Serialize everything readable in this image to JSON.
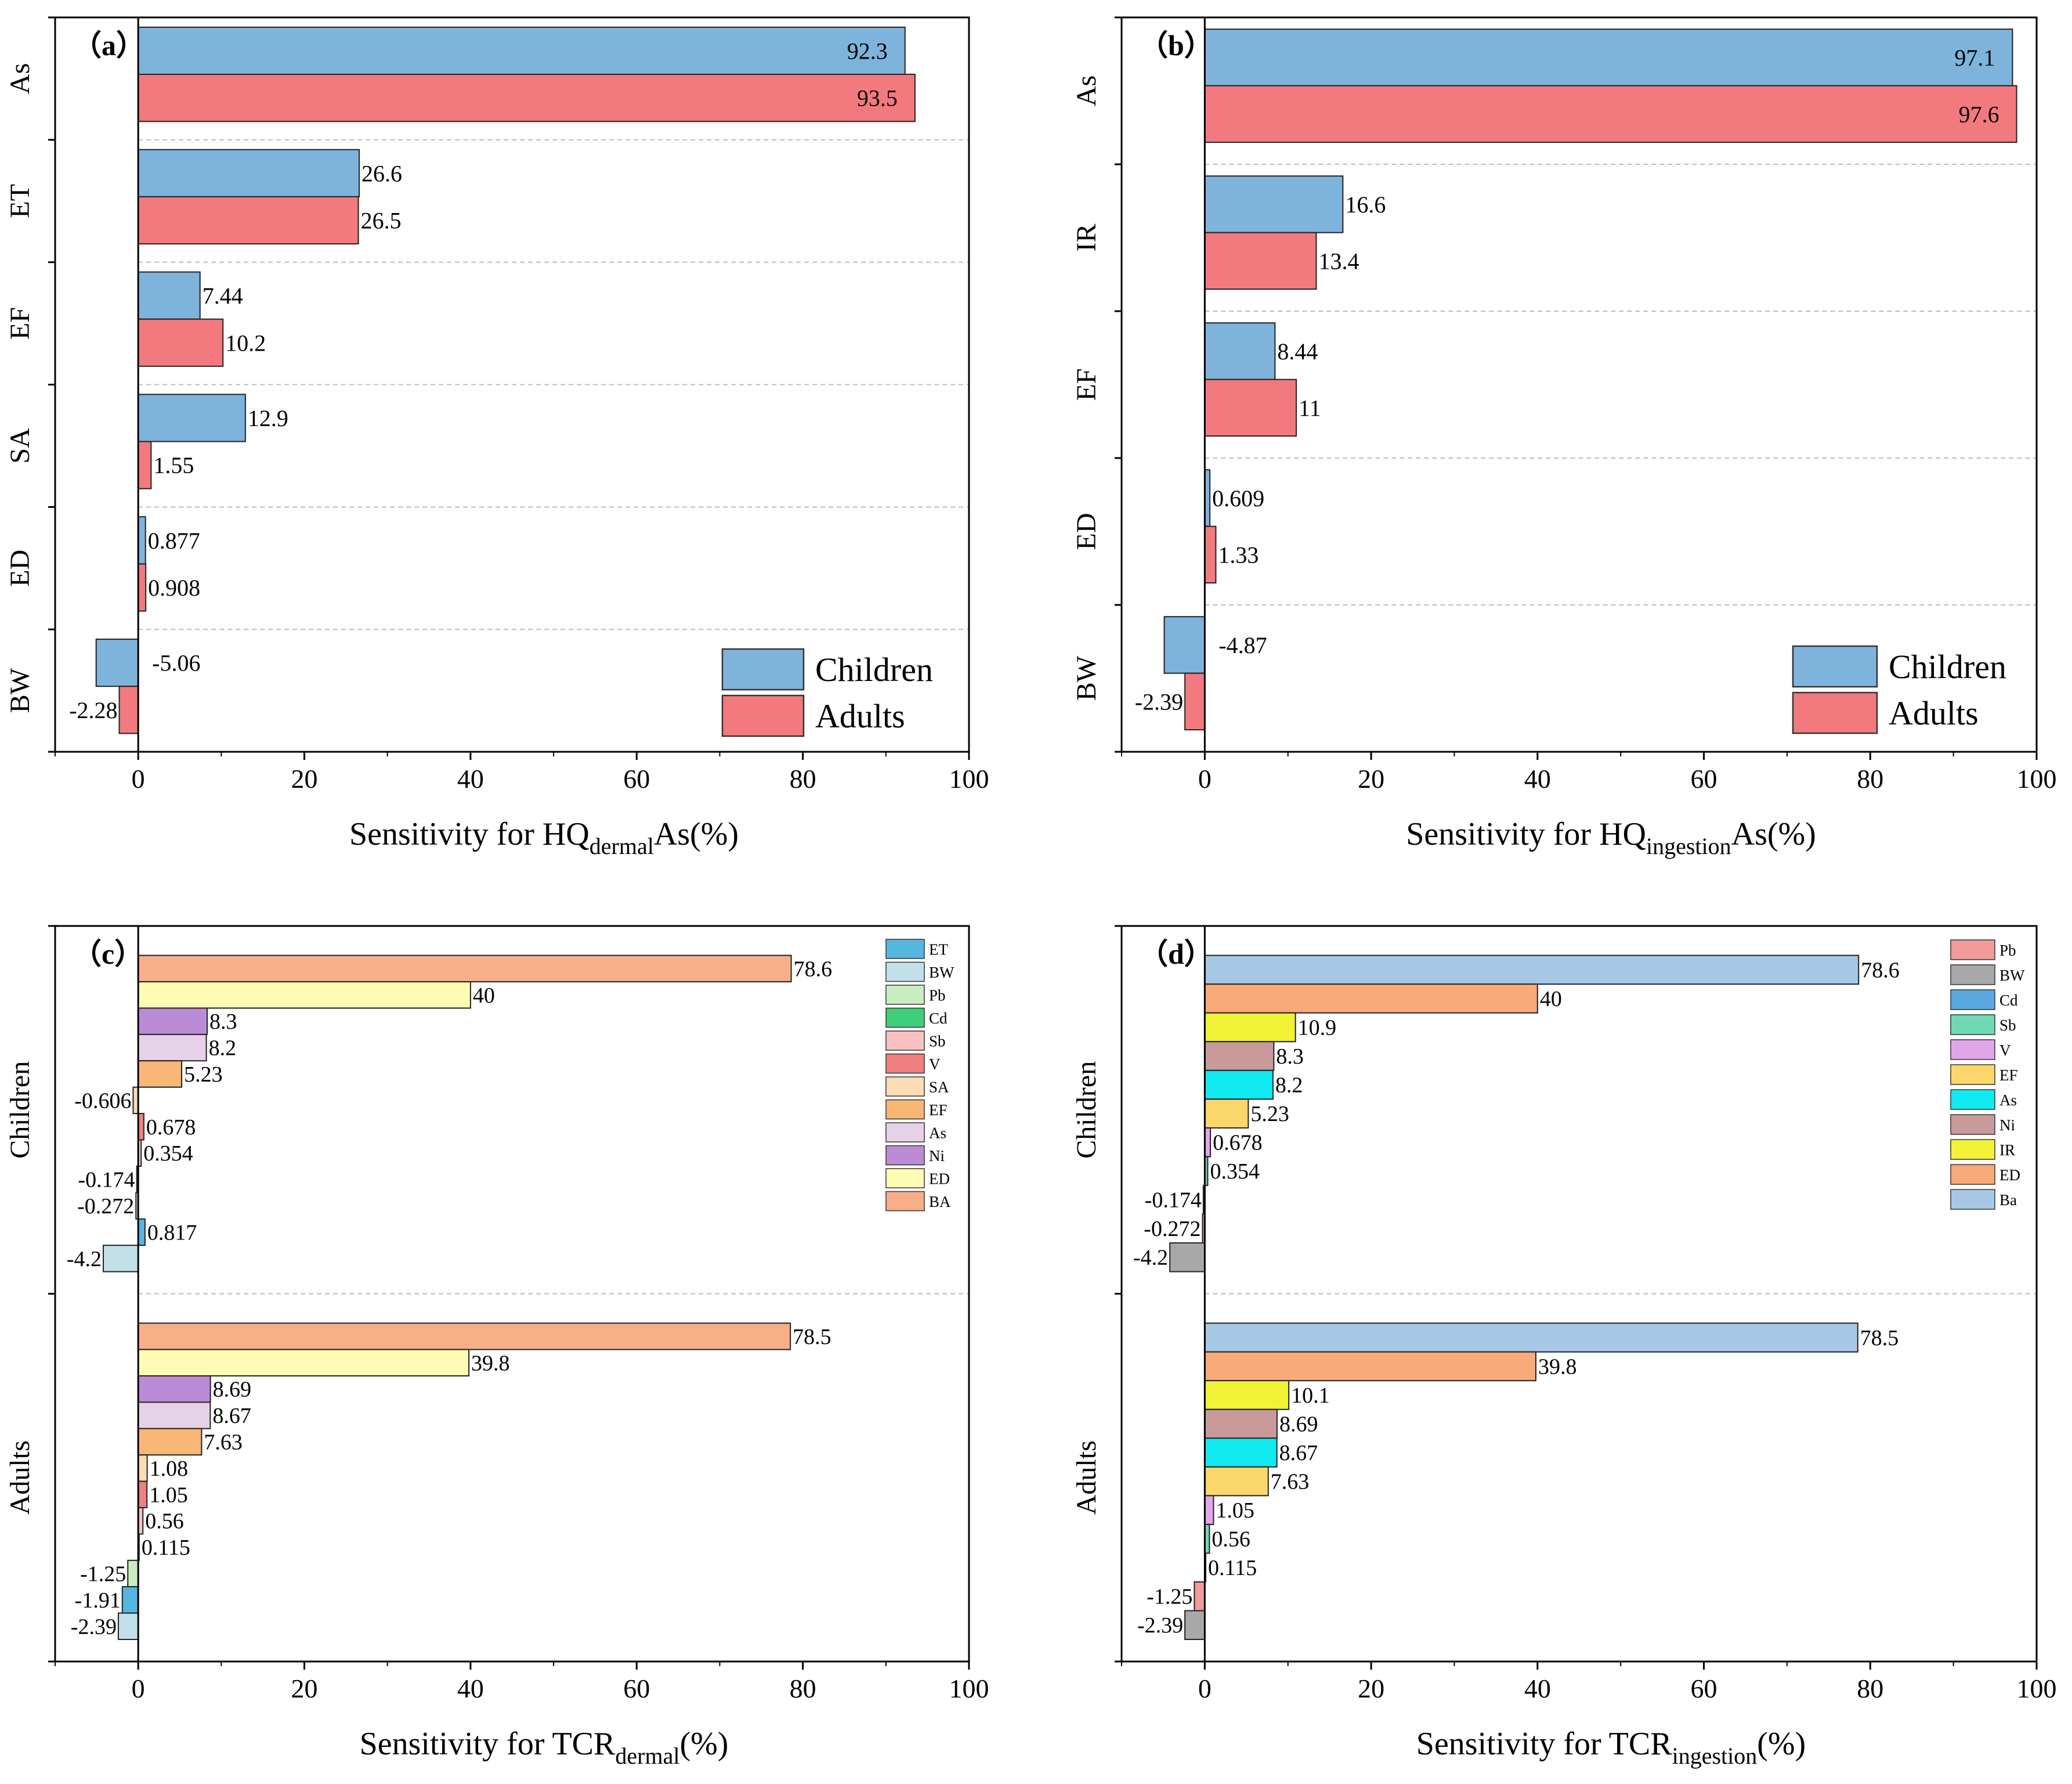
{
  "chart_data": [
    {
      "panel_label": "（a）",
      "type": "bar",
      "orientation": "horizontal",
      "xlabel_main": "Sensitivity for HQ",
      "xlabel_sub": "dermal",
      "xlabel_tail": "As(%)",
      "xlim": [
        -10,
        100
      ],
      "xticks": [
        "0",
        "20",
        "40",
        "60",
        "80",
        "100"
      ],
      "groups": [
        {
          "label": "As",
          "bars": [
            {
              "name": "Children",
              "value": 92.3,
              "label": "92.3",
              "color": "#7eb4dc"
            },
            {
              "name": "Adults",
              "value": 93.5,
              "label": "93.5",
              "color": "#f27a7e"
            }
          ]
        },
        {
          "label": "ET",
          "bars": [
            {
              "name": "Children",
              "value": 26.6,
              "label": "26.6",
              "color": "#7eb4dc"
            },
            {
              "name": "Adults",
              "value": 26.5,
              "label": "26.5",
              "color": "#f27a7e"
            }
          ]
        },
        {
          "label": "EF",
          "bars": [
            {
              "name": "Children",
              "value": 7.44,
              "label": "7.44",
              "color": "#7eb4dc"
            },
            {
              "name": "Adults",
              "value": 10.2,
              "label": "10.2",
              "color": "#f27a7e"
            }
          ]
        },
        {
          "label": "SA",
          "bars": [
            {
              "name": "Children",
              "value": 12.9,
              "label": "12.9",
              "color": "#7eb4dc"
            },
            {
              "name": "Adults",
              "value": 1.55,
              "label": "1.55",
              "color": "#f27a7e"
            }
          ]
        },
        {
          "label": "ED",
          "bars": [
            {
              "name": "Children",
              "value": 0.877,
              "label": "0.877",
              "color": "#7eb4dc"
            },
            {
              "name": "Adults",
              "value": 0.908,
              "label": "0.908",
              "color": "#f27a7e"
            }
          ]
        },
        {
          "label": "BW",
          "bars": [
            {
              "name": "Children",
              "value": -5.06,
              "label": "-5.06",
              "color": "#7eb4dc"
            },
            {
              "name": "Adults",
              "value": -2.28,
              "label": "-2.28",
              "color": "#f27a7e"
            }
          ]
        }
      ],
      "legend": [
        {
          "label": "Children",
          "color": "#7eb4dc"
        },
        {
          "label": "Adults",
          "color": "#f27a7e"
        }
      ]
    },
    {
      "panel_label": "（b）",
      "type": "bar",
      "orientation": "horizontal",
      "xlabel_main": "Sensitivity for HQ",
      "xlabel_sub": "ingestion",
      "xlabel_tail": "As(%)",
      "xlim": [
        -10,
        100
      ],
      "xticks": [
        "0",
        "20",
        "40",
        "60",
        "80",
        "100"
      ],
      "groups": [
        {
          "label": "As",
          "bars": [
            {
              "name": "Children",
              "value": 97.1,
              "label": "97.1",
              "color": "#7eb4dc"
            },
            {
              "name": "Adults",
              "value": 97.6,
              "label": "97.6",
              "color": "#f27a7e"
            }
          ]
        },
        {
          "label": "IR",
          "bars": [
            {
              "name": "Children",
              "value": 16.6,
              "label": "16.6",
              "color": "#7eb4dc"
            },
            {
              "name": "Adults",
              "value": 13.4,
              "label": "13.4",
              "color": "#f27a7e"
            }
          ]
        },
        {
          "label": "EF",
          "bars": [
            {
              "name": "Children",
              "value": 8.44,
              "label": "8.44",
              "color": "#7eb4dc"
            },
            {
              "name": "Adults",
              "value": 11,
              "label": "11",
              "color": "#f27a7e"
            }
          ]
        },
        {
          "label": "ED",
          "bars": [
            {
              "name": "Children",
              "value": 0.609,
              "label": "0.609",
              "color": "#7eb4dc"
            },
            {
              "name": "Adults",
              "value": 1.33,
              "label": "1.33",
              "color": "#f27a7e"
            }
          ]
        },
        {
          "label": "BW",
          "bars": [
            {
              "name": "Children",
              "value": -4.87,
              "label": "-4.87",
              "color": "#7eb4dc"
            },
            {
              "name": "Adults",
              "value": -2.39,
              "label": "-2.39",
              "color": "#f27a7e"
            }
          ]
        }
      ],
      "legend": [
        {
          "label": "Children",
          "color": "#7eb4dc"
        },
        {
          "label": "Adults",
          "color": "#f27a7e"
        }
      ]
    },
    {
      "panel_label": "（c）",
      "type": "bar",
      "orientation": "horizontal",
      "xlabel_main": "Sensitivity for TCR",
      "xlabel_sub": "dermal",
      "xlabel_tail": "(%)",
      "xlim": [
        -10,
        100
      ],
      "xticks": [
        "0",
        "20",
        "40",
        "60",
        "80",
        "100"
      ],
      "groups": [
        {
          "label": "Children",
          "bars": [
            {
              "name": "BA",
              "value": 78.6,
              "label": "78.6",
              "color": "#f9ae8a"
            },
            {
              "name": "ED",
              "value": 40,
              "label": "40",
              "color": "#fdfbb4"
            },
            {
              "name": "Ni",
              "value": 8.3,
              "label": "8.3",
              "color": "#bc8bd8"
            },
            {
              "name": "As",
              "value": 8.2,
              "label": "8.2",
              "color": "#e6d2e8"
            },
            {
              "name": "EF",
              "value": 5.23,
              "label": "5.23",
              "color": "#f8b776"
            },
            {
              "name": "SA",
              "value": -0.606,
              "label": "-0.606",
              "color": "#fcdcb4"
            },
            {
              "name": "V",
              "value": 0.678,
              "label": "0.678",
              "color": "#f08080"
            },
            {
              "name": "Sb",
              "value": 0.354,
              "label": "0.354",
              "color": "#f9c2c2"
            },
            {
              "name": "Cd",
              "value": -0.174,
              "label": "-0.174",
              "color": "#3fcf7a"
            },
            {
              "name": "Pb",
              "value": -0.272,
              "label": "-0.272",
              "color": "#c8edc0"
            },
            {
              "name": "ET",
              "value": 0.817,
              "label": "0.817",
              "color": "#55b6e0"
            },
            {
              "name": "BW",
              "value": -4.2,
              "label": "-4.2",
              "color": "#c3dfe9"
            }
          ]
        },
        {
          "label": "Adults",
          "bars": [
            {
              "name": "BA",
              "value": 78.5,
              "label": "78.5",
              "color": "#f9ae8a"
            },
            {
              "name": "ED",
              "value": 39.8,
              "label": "39.8",
              "color": "#fdfbb4"
            },
            {
              "name": "Ni",
              "value": 8.69,
              "label": "8.69",
              "color": "#bc8bd8"
            },
            {
              "name": "As",
              "value": 8.67,
              "label": "8.67",
              "color": "#e6d2e8"
            },
            {
              "name": "EF",
              "value": 7.63,
              "label": "7.63",
              "color": "#f8b776"
            },
            {
              "name": "SA",
              "value": 1.08,
              "label": "1.08",
              "color": "#fcdcb4"
            },
            {
              "name": "V",
              "value": 1.05,
              "label": "1.05",
              "color": "#f08080"
            },
            {
              "name": "Sb",
              "value": 0.56,
              "label": "0.56",
              "color": "#f9c2c2"
            },
            {
              "name": "Cd",
              "value": 0.115,
              "label": "0.115",
              "color": "#3fcf7a"
            },
            {
              "name": "Pb",
              "value": -1.25,
              "label": "-1.25",
              "color": "#c8edc0"
            },
            {
              "name": "ET",
              "value": -1.91,
              "label": "-1.91",
              "color": "#55b6e0"
            },
            {
              "name": "BW",
              "value": -2.39,
              "label": "-2.39",
              "color": "#c3dfe9"
            }
          ]
        }
      ],
      "legend": [
        {
          "label": "ET",
          "color": "#55b6e0"
        },
        {
          "label": "BW",
          "color": "#c3dfe9"
        },
        {
          "label": "Pb",
          "color": "#c8edc0"
        },
        {
          "label": "Cd",
          "color": "#3fcf7a"
        },
        {
          "label": "Sb",
          "color": "#f9c2c2"
        },
        {
          "label": "V",
          "color": "#f08080"
        },
        {
          "label": "SA",
          "color": "#fcdcb4"
        },
        {
          "label": "EF",
          "color": "#f8b776"
        },
        {
          "label": "As",
          "color": "#e6d2e8"
        },
        {
          "label": "Ni",
          "color": "#bc8bd8"
        },
        {
          "label": "ED",
          "color": "#fdfbb4"
        },
        {
          "label": "BA",
          "color": "#f9ae8a"
        }
      ]
    },
    {
      "panel_label": "（d）",
      "type": "bar",
      "orientation": "horizontal",
      "xlabel_main": "Sensitivity for TCR",
      "xlabel_sub": "ingestion",
      "xlabel_tail": "(%)",
      "xlim": [
        -10,
        100
      ],
      "xticks": [
        "0",
        "20",
        "40",
        "60",
        "80",
        "100"
      ],
      "groups": [
        {
          "label": "Children",
          "bars": [
            {
              "name": "Ba",
              "value": 78.6,
              "label": "78.6",
              "color": "#a6c8e4"
            },
            {
              "name": "ED",
              "value": 40,
              "label": "40",
              "color": "#f8aa78"
            },
            {
              "name": "IR",
              "value": 10.9,
              "label": "10.9",
              "color": "#f2f236"
            },
            {
              "name": "Ni",
              "value": 8.3,
              "label": "8.3",
              "color": "#c99a9a"
            },
            {
              "name": "As",
              "value": 8.2,
              "label": "8.2",
              "color": "#10eaf0"
            },
            {
              "name": "EF",
              "value": 5.23,
              "label": "5.23",
              "color": "#fbd66a"
            },
            {
              "name": "V",
              "value": 0.678,
              "label": "0.678",
              "color": "#e0a6e8"
            },
            {
              "name": "Sb",
              "value": 0.354,
              "label": "0.354",
              "color": "#6fd9b4"
            },
            {
              "name": "Cd",
              "value": -0.174,
              "label": "-0.174",
              "color": "#5aa8e2"
            },
            {
              "name": "Pb",
              "value": -0.272,
              "label": "-0.272",
              "color": "#f19b9b"
            },
            {
              "name": "BW",
              "value": -4.2,
              "label": "-4.2",
              "color": "#a8a8a8"
            }
          ]
        },
        {
          "label": "Adults",
          "bars": [
            {
              "name": "Ba",
              "value": 78.5,
              "label": "78.5",
              "color": "#a6c8e4"
            },
            {
              "name": "ED",
              "value": 39.8,
              "label": "39.8",
              "color": "#f8aa78"
            },
            {
              "name": "IR",
              "value": 10.1,
              "label": "10.1",
              "color": "#f2f236"
            },
            {
              "name": "Ni",
              "value": 8.69,
              "label": "8.69",
              "color": "#c99a9a"
            },
            {
              "name": "As",
              "value": 8.67,
              "label": "8.67",
              "color": "#10eaf0"
            },
            {
              "name": "EF",
              "value": 7.63,
              "label": "7.63",
              "color": "#fbd66a"
            },
            {
              "name": "V",
              "value": 1.05,
              "label": "1.05",
              "color": "#e0a6e8"
            },
            {
              "name": "Sb",
              "value": 0.56,
              "label": "0.56",
              "color": "#6fd9b4"
            },
            {
              "name": "Cd",
              "value": 0.115,
              "label": "0.115",
              "color": "#5aa8e2"
            },
            {
              "name": "Pb",
              "value": -1.25,
              "label": "-1.25",
              "color": "#f19b9b"
            },
            {
              "name": "BW",
              "value": -2.39,
              "label": "-2.39",
              "color": "#a8a8a8"
            }
          ]
        }
      ],
      "legend": [
        {
          "label": "Pb",
          "color": "#f19b9b"
        },
        {
          "label": "BW",
          "color": "#a8a8a8"
        },
        {
          "label": "Cd",
          "color": "#5aa8e2"
        },
        {
          "label": "Sb",
          "color": "#6fd9b4"
        },
        {
          "label": "V",
          "color": "#e0a6e8"
        },
        {
          "label": "EF",
          "color": "#fbd66a"
        },
        {
          "label": "As",
          "color": "#10eaf0"
        },
        {
          "label": "Ni",
          "color": "#c99a9a"
        },
        {
          "label": "IR",
          "color": "#f2f236"
        },
        {
          "label": "ED",
          "color": "#f8aa78"
        },
        {
          "label": "Ba",
          "color": "#a6c8e4"
        }
      ]
    }
  ]
}
